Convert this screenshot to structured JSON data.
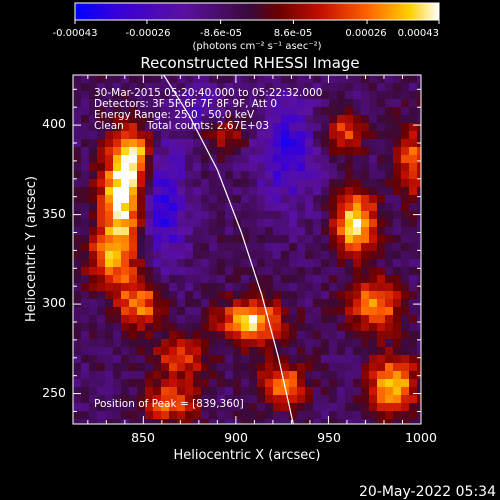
{
  "chart_data": {
    "type": "heatmap",
    "title": "Reconstructed RHESSI Image",
    "xlabel": "Heliocentric X (arcsec)",
    "ylabel": "Heliocentric Y (arcsec)",
    "xlim": [
      812,
      1000
    ],
    "ylim": [
      233,
      428
    ],
    "x_ticks": [
      "850",
      "900",
      "950",
      "1000"
    ],
    "y_ticks": [
      "250",
      "300",
      "350",
      "400"
    ],
    "x_tick_values": [
      850,
      900,
      950,
      1000
    ],
    "y_tick_values": [
      250,
      300,
      350,
      400
    ],
    "colorbar": {
      "min": -0.00043,
      "max": 0.00043,
      "tick_labels": [
        "-0.00043",
        "-0.00026",
        "-8.6e-05",
        "8.6e-05",
        "0.00026",
        "0.00043"
      ],
      "tick_values": [
        -0.00043,
        -0.00026,
        -8.6e-05,
        8.6e-05,
        0.00026,
        0.00043
      ],
      "label": "(photons cm⁻² s⁻¹ asec⁻²)"
    },
    "annotations": {
      "time_range": "30-Mar-2015 05:20:40.000 to 05:22:32.000",
      "detectors": "Detectors: 3F 5F 6F 7F 8F 9F, Att 0",
      "energy": "Energy Range: 25.0 - 50.0 keV",
      "method": "Clean",
      "counts": "Total counts: 2.67E+03",
      "peak": "Position of Peak = [839,360]"
    },
    "peak": [
      839,
      360
    ],
    "limb_curve": [
      [
        861,
        428
      ],
      [
        875,
        405
      ],
      [
        890,
        375
      ],
      [
        903,
        340
      ],
      [
        914,
        305
      ],
      [
        923,
        270
      ],
      [
        931,
        233
      ]
    ],
    "sources": [
      {
        "x": 839,
        "y": 360,
        "sx": 9,
        "sy": 20,
        "amp": 1.0
      },
      {
        "x": 845,
        "y": 385,
        "sx": 7,
        "sy": 10,
        "amp": 0.7
      },
      {
        "x": 833,
        "y": 325,
        "sx": 10,
        "sy": 12,
        "amp": 0.6
      },
      {
        "x": 848,
        "y": 300,
        "sx": 9,
        "sy": 10,
        "amp": 0.7
      },
      {
        "x": 870,
        "y": 270,
        "sx": 10,
        "sy": 8,
        "amp": 0.55
      },
      {
        "x": 865,
        "y": 245,
        "sx": 10,
        "sy": 8,
        "amp": 0.65
      },
      {
        "x": 908,
        "y": 290,
        "sx": 12,
        "sy": 9,
        "amp": 0.9
      },
      {
        "x": 925,
        "y": 255,
        "sx": 9,
        "sy": 9,
        "amp": 0.7
      },
      {
        "x": 965,
        "y": 345,
        "sx": 8,
        "sy": 12,
        "amp": 1.0
      },
      {
        "x": 975,
        "y": 300,
        "sx": 10,
        "sy": 10,
        "amp": 0.75
      },
      {
        "x": 985,
        "y": 255,
        "sx": 9,
        "sy": 12,
        "amp": 0.85
      },
      {
        "x": 958,
        "y": 395,
        "sx": 8,
        "sy": 8,
        "amp": 0.55
      },
      {
        "x": 995,
        "y": 380,
        "sx": 6,
        "sy": 15,
        "amp": 0.6
      },
      {
        "x": 895,
        "y": 395,
        "sx": 8,
        "sy": 7,
        "amp": 0.4
      }
    ],
    "cold_regions": [
      {
        "x": 860,
        "y": 355,
        "sx": 9,
        "sy": 25,
        "amp": 0.55
      },
      {
        "x": 928,
        "y": 385,
        "sx": 12,
        "sy": 20,
        "amp": 0.5
      },
      {
        "x": 880,
        "y": 410,
        "sx": 10,
        "sy": 8,
        "amp": 0.3
      }
    ],
    "grid": false,
    "legend": "none"
  },
  "footer": {
    "date": "20-May-2022 05:34"
  }
}
